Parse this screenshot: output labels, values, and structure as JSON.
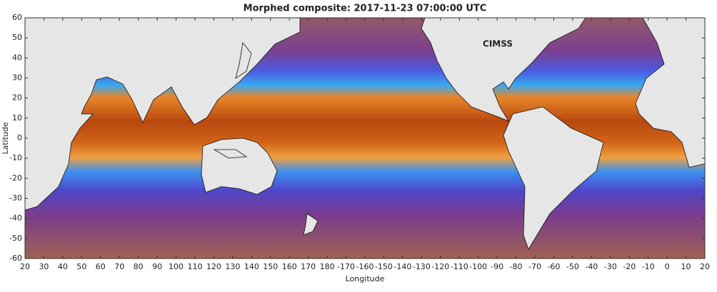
{
  "map": {
    "title": "Morphed composite: 2017-11-23 07:00:00 UTC",
    "xlabel": "Longitude",
    "ylabel": "Latitude",
    "logo": "CIMSS",
    "lon_ticks": [
      20,
      30,
      40,
      50,
      60,
      70,
      80,
      90,
      100,
      110,
      120,
      130,
      140,
      150,
      160,
      170,
      180,
      -170,
      -160,
      -150,
      -140,
      -130,
      -120,
      -110,
      -100,
      -90,
      -80,
      -70,
      -60,
      -50,
      -40,
      -30,
      -20,
      -10,
      0,
      10,
      20
    ],
    "lat_ticks": [
      60,
      50,
      40,
      30,
      20,
      10,
      0,
      -10,
      -20,
      -30,
      -40,
      -50,
      -60
    ],
    "xlim": [
      20,
      380
    ],
    "ylim": [
      -60,
      60
    ]
  }
}
